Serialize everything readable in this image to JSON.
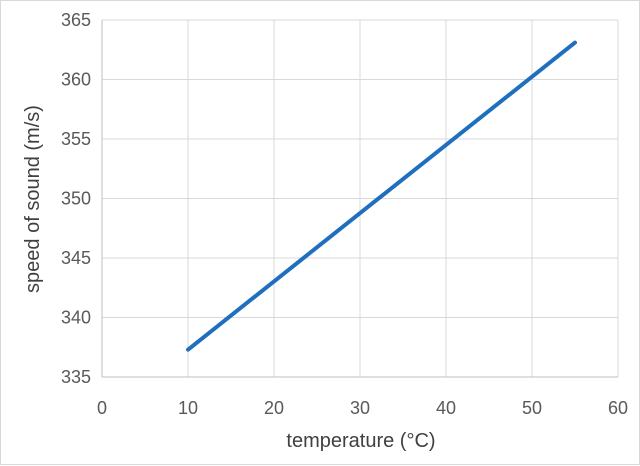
{
  "chart_data": {
    "type": "line",
    "title": "",
    "xlabel": "temperature (°C)",
    "ylabel": "speed of sound (m/s)",
    "xlim": [
      0,
      60
    ],
    "ylim": [
      335,
      365
    ],
    "xticks": [
      0,
      10,
      20,
      30,
      40,
      50,
      60
    ],
    "yticks": [
      335,
      340,
      345,
      350,
      355,
      360,
      365
    ],
    "grid": true,
    "series": [
      {
        "color": "#1f6fbf",
        "x": [
          10,
          55
        ],
        "y": [
          337.3,
          363.1
        ]
      }
    ]
  }
}
